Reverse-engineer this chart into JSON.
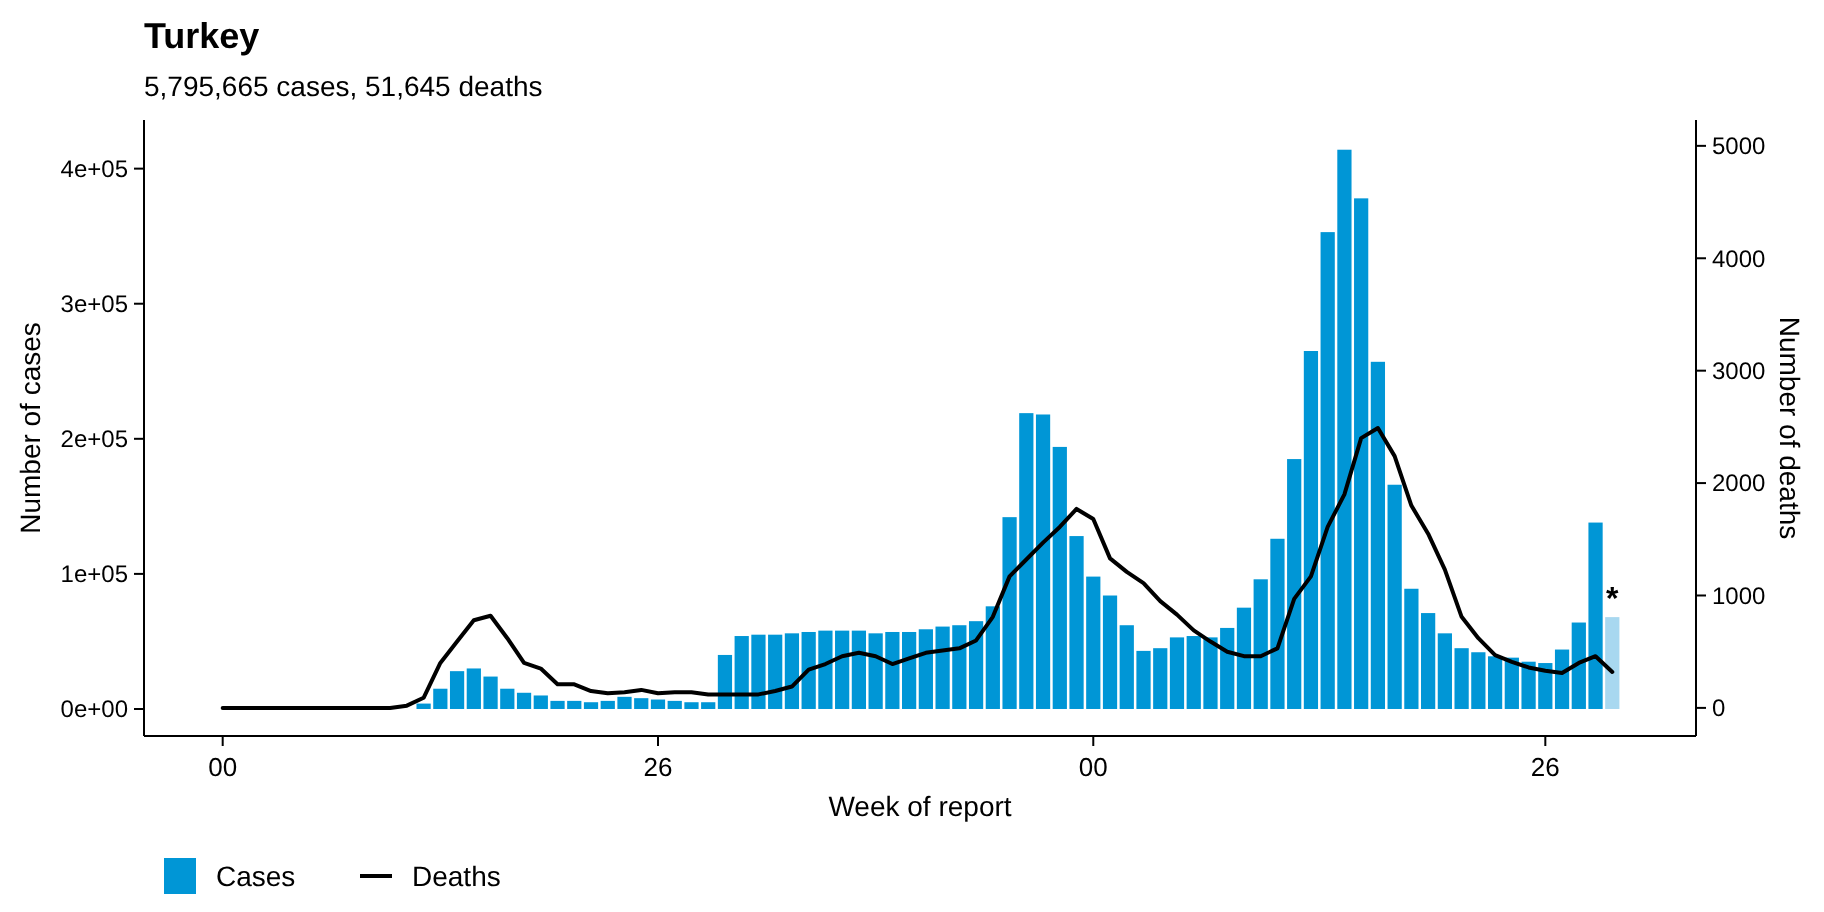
{
  "chart_data": {
    "type": "bar",
    "title": "Turkey",
    "subtitle": "5,795,665 cases, 51,645 deaths",
    "xlabel": "Week of report",
    "ylabel": "Number of cases",
    "y2label": "Number of deaths",
    "categories": [
      "00",
      null,
      null,
      null,
      null,
      null,
      null,
      null,
      null,
      null,
      null,
      null,
      null,
      null,
      null,
      null,
      null,
      null,
      null,
      null,
      null,
      null,
      null,
      null,
      null,
      null,
      "26",
      null,
      null,
      null,
      null,
      null,
      null,
      null,
      null,
      null,
      null,
      null,
      null,
      null,
      null,
      null,
      null,
      null,
      null,
      null,
      null,
      null,
      null,
      null,
      null,
      null,
      "00",
      null,
      null,
      null,
      null,
      null,
      null,
      null,
      null,
      null,
      null,
      null,
      null,
      null,
      null,
      null,
      null,
      null,
      null,
      null,
      null,
      null,
      null,
      null,
      null,
      null,
      null,
      "26",
      null,
      null,
      null,
      null
    ],
    "series": [
      {
        "name": "Cases",
        "color": "#0096d6",
        "colors": [
          null,
          null,
          null,
          null,
          null,
          null,
          null,
          null,
          null,
          null,
          null,
          null,
          "#0096d6",
          "#0096d6",
          "#0096d6",
          "#0096d6",
          "#0096d6",
          "#0096d6",
          "#0096d6",
          "#0096d6",
          "#0096d6",
          "#0096d6",
          "#0096d6",
          "#0096d6",
          "#0096d6",
          "#0096d6",
          "#0096d6",
          "#0096d6",
          "#0096d6",
          "#0096d6",
          "#0096d6",
          "#0096d6",
          "#0096d6",
          "#0096d6",
          "#0096d6",
          "#0096d6",
          "#0096d6",
          "#0096d6",
          "#0096d6",
          "#0096d6",
          "#0096d6",
          "#0096d6",
          "#0096d6",
          "#0096d6",
          "#0096d6",
          "#0096d6",
          "#0096d6",
          "#0096d6",
          "#0096d6",
          "#0096d6",
          "#0096d6",
          "#0096d6",
          "#0096d6",
          "#0096d6",
          "#0096d6",
          "#0096d6",
          "#0096d6",
          "#0096d6",
          "#0096d6",
          "#0096d6",
          "#0096d6",
          "#0096d6",
          "#0096d6",
          "#0096d6",
          "#0096d6",
          "#0096d6",
          "#0096d6",
          "#0096d6",
          "#0096d6",
          "#0096d6",
          "#0096d6",
          "#0096d6",
          "#0096d6",
          "#0096d6",
          "#0096d6",
          "#0096d6",
          "#0096d6",
          "#0096d6",
          "#0096d6",
          "#0096d6",
          "#0096d6",
          "#0096d6",
          "#0096d6",
          "#a8d8f0"
        ],
        "values": [
          null,
          null,
          null,
          null,
          null,
          null,
          null,
          null,
          null,
          null,
          null,
          null,
          4000,
          15000,
          28000,
          30000,
          24000,
          15000,
          12000,
          10000,
          6000,
          6000,
          5000,
          6000,
          9000,
          8000,
          7000,
          6000,
          5000,
          5000,
          40000,
          54000,
          55000,
          55000,
          56000,
          57000,
          58000,
          58000,
          58000,
          56000,
          57000,
          57000,
          59000,
          61000,
          62000,
          65000,
          76000,
          142000,
          219000,
          218000,
          194000,
          128000,
          98000,
          84000,
          62000,
          43000,
          45000,
          53000,
          54000,
          53000,
          60000,
          75000,
          96000,
          126000,
          185000,
          265000,
          353000,
          414000,
          378000,
          257000,
          166000,
          89000,
          71000,
          56000,
          45000,
          42000,
          39000,
          38000,
          35000,
          34000,
          44000,
          64000,
          138000,
          68000
        ]
      },
      {
        "name": "Deaths",
        "type": "line",
        "axis": "y2",
        "color": "#000000",
        "values": [
          0,
          0,
          0,
          0,
          0,
          0,
          0,
          0,
          0,
          0,
          0,
          20,
          90,
          400,
          590,
          780,
          820,
          620,
          400,
          350,
          210,
          210,
          150,
          130,
          140,
          160,
          130,
          140,
          140,
          120,
          120,
          120,
          120,
          150,
          190,
          340,
          390,
          460,
          490,
          460,
          390,
          440,
          490,
          510,
          530,
          600,
          810,
          1170,
          1320,
          1470,
          1610,
          1770,
          1680,
          1330,
          1210,
          1110,
          950,
          830,
          690,
          590,
          500,
          460,
          460,
          530,
          970,
          1170,
          1610,
          1900,
          2400,
          2490,
          2240,
          1800,
          1550,
          1230,
          810,
          620,
          470,
          410,
          360,
          330,
          310,
          400,
          460,
          320
        ]
      }
    ],
    "ylim": [
      -20000,
      436000
    ],
    "yticks": [
      {
        "value": 0,
        "label": "0e+00"
      },
      {
        "value": 100000,
        "label": "1e+05"
      },
      {
        "value": 200000,
        "label": "2e+05"
      },
      {
        "value": 300000,
        "label": "3e+05"
      },
      {
        "value": 400000,
        "label": "4e+05"
      }
    ],
    "y2lim": [
      -250,
      5230
    ],
    "y2ticks": [
      0,
      1000,
      2000,
      3000,
      4000,
      5000
    ],
    "annotations": [
      {
        "text": "*",
        "y": 68000
      }
    ],
    "legend": "bottom left",
    "grid": false
  }
}
